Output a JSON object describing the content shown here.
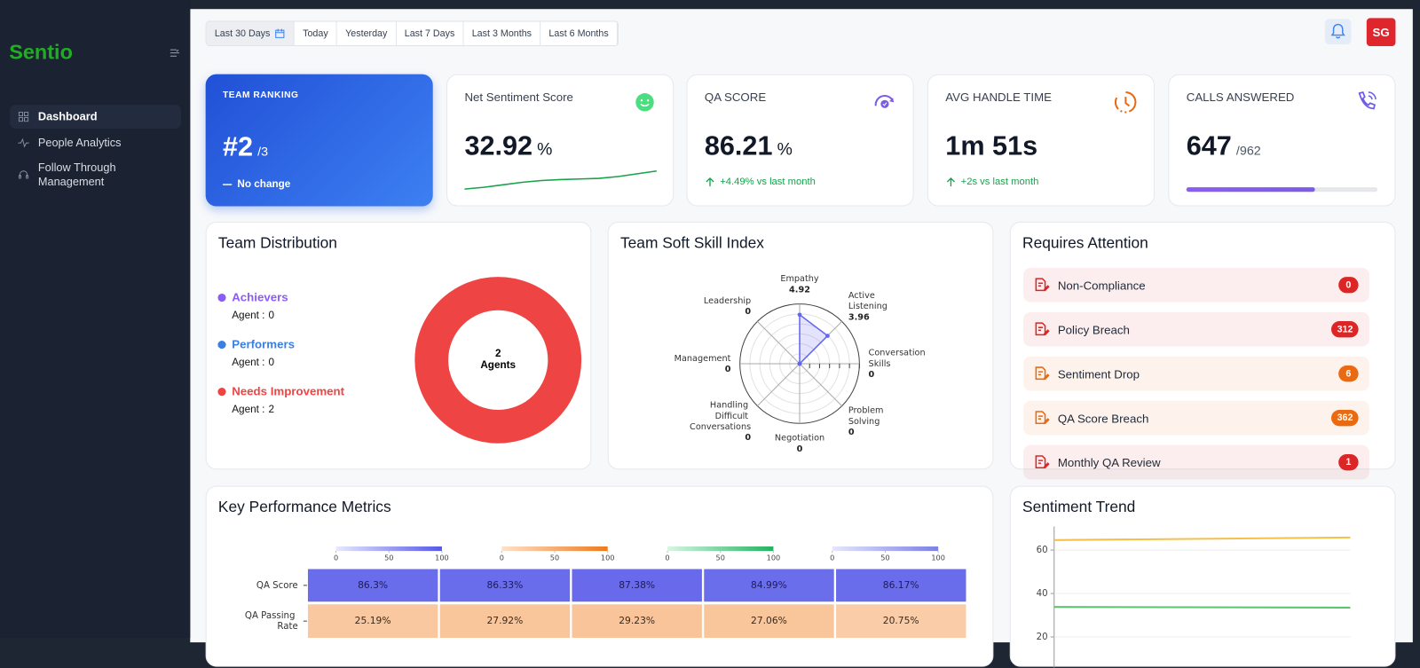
{
  "sidebar": {
    "brand": "Sentio",
    "nav": [
      "Dashboard",
      "People Analytics",
      "Follow Through Management"
    ],
    "active": 0
  },
  "header": {
    "date_filters": [
      "Last 30 Days",
      "Today",
      "Yesterday",
      "Last 7 Days",
      "Last 3 Months",
      "Last 6 Months"
    ],
    "active_filter": 0,
    "avatar": "SG"
  },
  "kpis": {
    "team_ranking": {
      "title": "TEAM RANKING",
      "value": "#2",
      "suffix": "/3",
      "note": "No change"
    },
    "net_sentiment": {
      "title": "Net Sentiment Score",
      "value": 32.92,
      "unit": "%",
      "trend": [
        30,
        30.6,
        31.4,
        32.2,
        32.8,
        33.1,
        33.3,
        33.5,
        34.1,
        35,
        35.9
      ]
    },
    "qa_score": {
      "title": "QA SCORE",
      "value": 86.21,
      "unit": "%",
      "change": "+4.49% vs last month"
    },
    "avg_handle_time": {
      "title": "AVG HANDLE TIME",
      "value": "1m 51s",
      "change": "+2s vs last month"
    },
    "calls_answered": {
      "title": "CALLS ANSWERED",
      "value": 647,
      "separator": "/",
      "total": 962
    }
  },
  "team_distribution": {
    "title": "Team Distribution",
    "count_label": "Agent :",
    "groups": [
      {
        "name": "Achievers",
        "count": 0,
        "color": "#8b5cf6"
      },
      {
        "name": "Performers",
        "count": 0,
        "color": "#3b7fe0"
      },
      {
        "name": "Needs Improvement",
        "count": 2,
        "color": "#ef4444"
      }
    ],
    "total": 2,
    "total_label": "Agents"
  },
  "soft_skill_index": {
    "title": "Team Soft Skill Index",
    "type": "radar",
    "rlim": [
      0,
      6
    ],
    "rgrid": [
      1,
      2,
      3,
      4,
      5,
      6
    ],
    "axes": [
      "Empathy",
      "Active Listening",
      "Conversation Skills",
      "Problem Solving",
      "Negotiation",
      "Handling Difficult Conversations",
      "Management",
      "Leadership"
    ],
    "values": [
      4.92,
      3.96,
      0,
      0,
      0,
      0,
      0,
      0
    ],
    "color": "#6366f1"
  },
  "requires_attention": {
    "title": "Requires Attention",
    "items": [
      {
        "label": "Non-Compliance",
        "count": 0,
        "color": "#dc2626"
      },
      {
        "label": "Policy Breach",
        "count": 312,
        "color": "#dc2626"
      },
      {
        "label": "Sentiment Drop",
        "count": 6,
        "color": "#ea6a12"
      },
      {
        "label": "QA Score Breach",
        "count": 362,
        "color": "#ea6a12"
      },
      {
        "label": "Monthly QA Review",
        "count": 1,
        "color": "#dc2626"
      }
    ]
  },
  "key_performance_metrics": {
    "title": "Key Performance Metrics",
    "type": "heatmap",
    "colorbars": [
      {
        "colors": [
          "#e8e9fd",
          "#5558e8"
        ],
        "range": [
          0,
          100
        ],
        "ticks": [
          0,
          50,
          100
        ]
      },
      {
        "colors": [
          "#fde2cc",
          "#ee7a1c"
        ],
        "range": [
          0,
          100
        ],
        "ticks": [
          0,
          50,
          100
        ]
      },
      {
        "colors": [
          "#d9f5e4",
          "#22b35e"
        ],
        "range": [
          0,
          100
        ],
        "ticks": [
          0,
          50,
          100
        ]
      },
      {
        "colors": [
          "#e6e7fb",
          "#7b80e6"
        ],
        "range": [
          0,
          100
        ],
        "ticks": [
          0,
          50,
          100
        ]
      }
    ],
    "rows": [
      {
        "label": "QA Score",
        "colorbar": 0,
        "values": [
          86.3,
          86.33,
          87.38,
          84.99,
          86.17
        ],
        "value_labels": [
          "86.3%",
          "86.33%",
          "87.38%",
          "84.99%",
          "86.17%"
        ]
      },
      {
        "label": "QA Passing Rate",
        "colorbar": 1,
        "values": [
          25.19,
          27.92,
          29.23,
          27.06,
          20.75
        ],
        "value_labels": [
          "25.19%",
          "27.92%",
          "29.23%",
          "27.06%",
          "20.75%"
        ]
      }
    ]
  },
  "sentiment_trend": {
    "title": "Sentiment Trend",
    "type": "line",
    "categories": [
      null,
      null
    ],
    "ylim": [
      0,
      70
    ],
    "yticks": [
      20,
      40,
      60
    ],
    "grid": true,
    "series": [
      {
        "color": "#f5c04a",
        "values": [
          64.6,
          65.8
        ]
      },
      {
        "color": "#5cc46a",
        "values": [
          33.8,
          33.5
        ]
      }
    ]
  }
}
